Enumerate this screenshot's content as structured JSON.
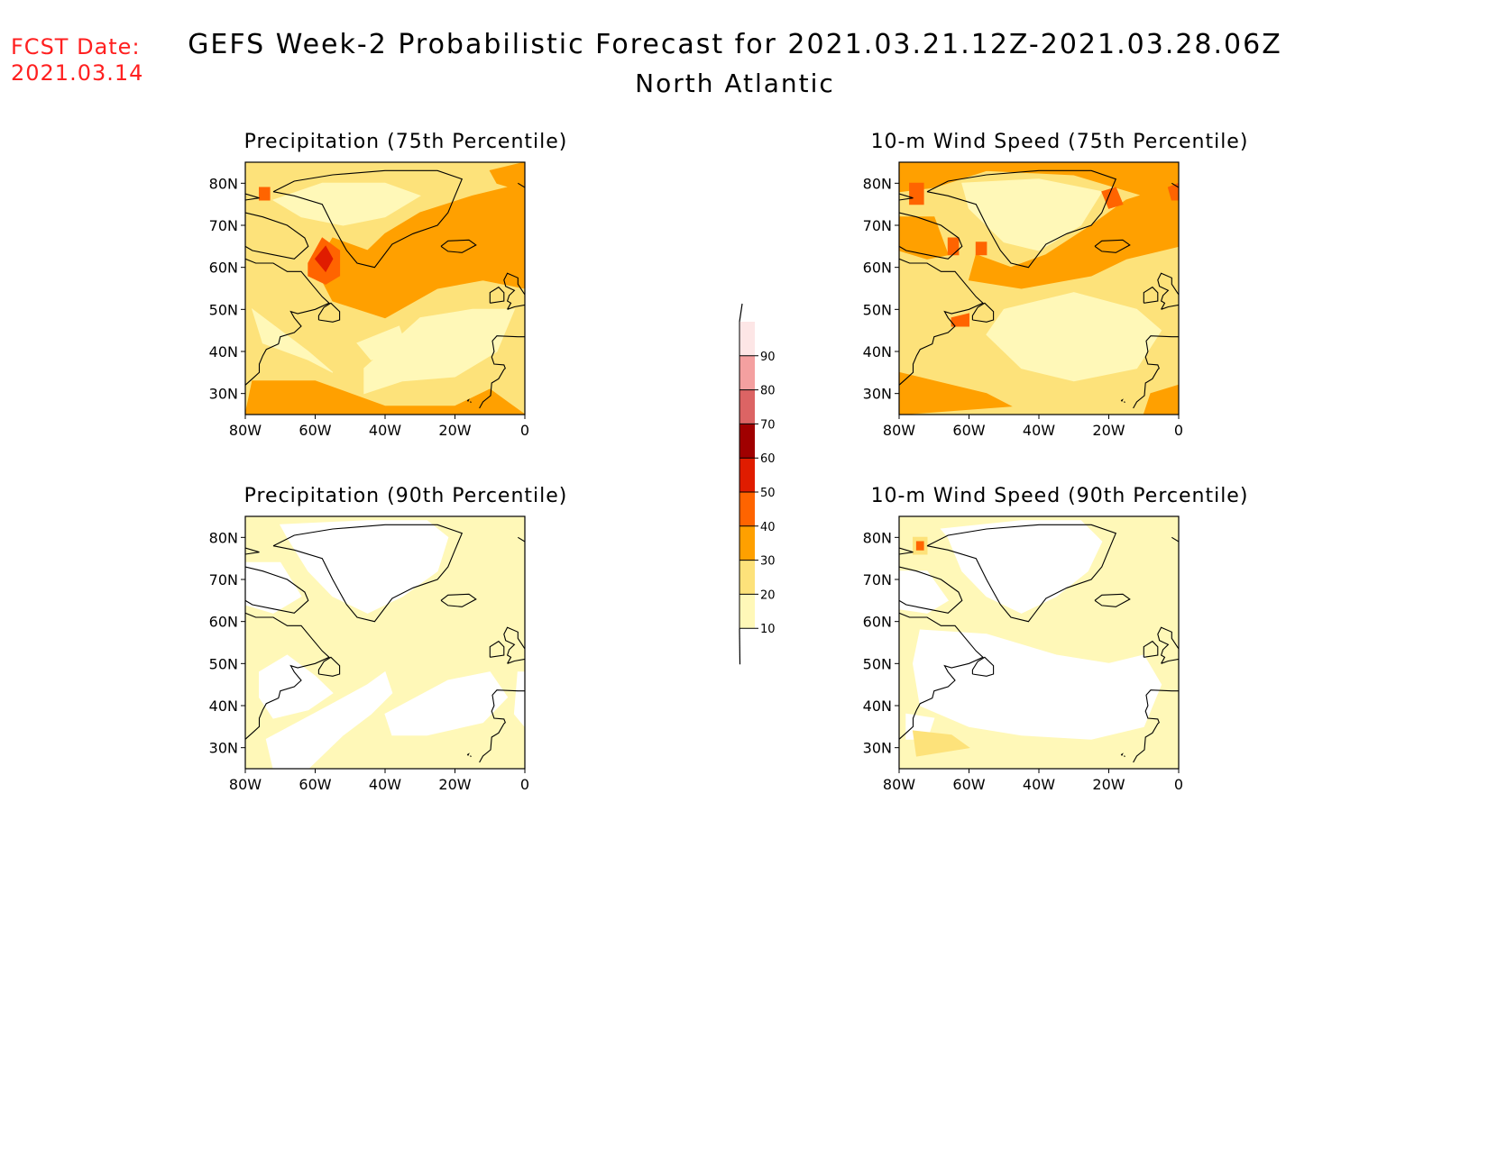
{
  "fcst_label": "FCST Date:",
  "fcst_date": "2021.03.14",
  "title": "GEFS Week-2 Probabilistic Forecast for 2021.03.21.12Z-2021.03.28.06Z",
  "subtitle": "North Atlantic",
  "lat_ticks": [
    "80N",
    "70N",
    "60N",
    "50N",
    "40N",
    "30N"
  ],
  "lon_ticks": [
    "80W",
    "60W",
    "40W",
    "20W",
    "0"
  ],
  "colorbar": {
    "levels": [
      "10",
      "20",
      "30",
      "40",
      "50",
      "60",
      "70",
      "80",
      "90"
    ],
    "colors": [
      "#fff8b8",
      "#fde27a",
      "#ffa000",
      "#ff6400",
      "#e01c00",
      "#a00000",
      "#dc6464",
      "#f4a0a0",
      "#fde6e6"
    ]
  },
  "panels": [
    {
      "id": "precip75",
      "title": "Precipitation (75th Percentile)"
    },
    {
      "id": "wind75",
      "title": "10-m Wind Speed (75th Percentile)"
    },
    {
      "id": "precip90",
      "title": "Precipitation (90th Percentile)"
    },
    {
      "id": "wind90",
      "title": "10-m Wind Speed (90th Percentile)"
    }
  ]
}
